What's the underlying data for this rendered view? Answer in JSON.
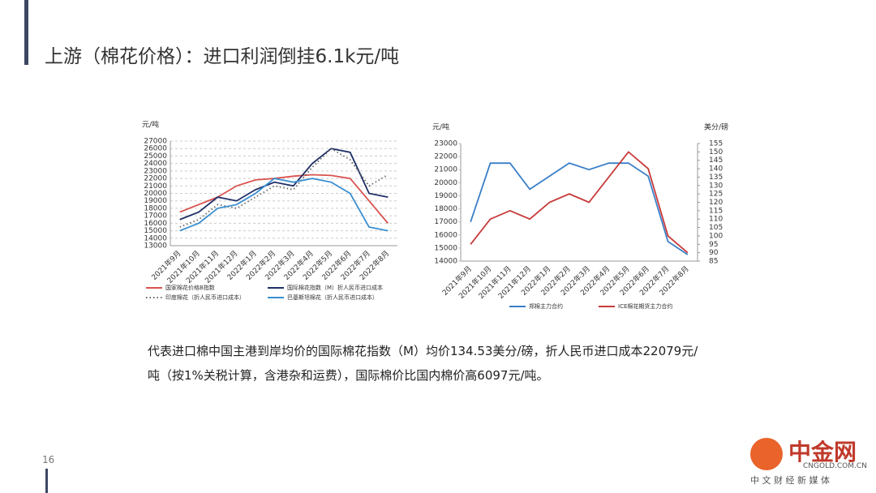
{
  "header": {
    "title": "上游（棉花价格）：进口利润倒挂6.1k元/吨"
  },
  "chart_data": [
    {
      "type": "line",
      "y_label": "元/吨",
      "categories": [
        "2021年9月",
        "2021年10月",
        "2021年11月",
        "2021年12月",
        "2022年1月",
        "2022年2月",
        "2022年3月",
        "2022年4月",
        "2022年5月",
        "2022年6月",
        "2022年7月",
        "2022年8月"
      ],
      "ylim": [
        13000,
        27000
      ],
      "yticks": [
        13000,
        14000,
        15000,
        16000,
        17000,
        18000,
        19000,
        20000,
        21000,
        22000,
        23000,
        24000,
        25000,
        26000,
        27000
      ],
      "grid": true,
      "series": [
        {
          "name": "国家棉花价格B指数",
          "color": "#d9534f",
          "linestyle": "solid",
          "values": [
            17500,
            18500,
            19500,
            21000,
            21800,
            22000,
            22300,
            22500,
            22400,
            22000,
            19000,
            16000
          ]
        },
        {
          "name": "国际棉花指数（M）折人民币进口成本",
          "color": "#1f2f66",
          "linestyle": "solid",
          "values": [
            16500,
            17500,
            19500,
            19000,
            20500,
            21500,
            21000,
            24000,
            26000,
            25500,
            20000,
            19500
          ]
        },
        {
          "name": "印度棉花（折人民币进口成本）",
          "color": "#666666",
          "linestyle": "dotted",
          "values": [
            15500,
            16500,
            18500,
            18000,
            19500,
            21000,
            20500,
            23500,
            26000,
            24500,
            21000,
            22500
          ]
        },
        {
          "name": "巴基斯坦棉花（折人民币进口成本）",
          "color": "#3a8fd0",
          "linestyle": "solid",
          "values": [
            15000,
            16000,
            18000,
            18500,
            20000,
            22000,
            21500,
            22000,
            21500,
            20000,
            15500,
            15000
          ]
        }
      ]
    },
    {
      "type": "line",
      "y_label": "元/吨",
      "y2_label": "美分/磅",
      "categories": [
        "2021年9月",
        "2021年10月",
        "2021年11月",
        "2021年12月",
        "2022年1月",
        "2022年2月",
        "2022年3月",
        "2022年4月",
        "2022年5月",
        "2022年6月",
        "2022年7月",
        "2022年8月"
      ],
      "ylim": [
        14000,
        23000
      ],
      "yticks": [
        14000,
        15000,
        16000,
        17000,
        18000,
        19000,
        20000,
        21000,
        22000,
        23000
      ],
      "y2lim": [
        85,
        155
      ],
      "y2ticks": [
        85,
        90,
        95,
        100,
        105,
        110,
        115,
        120,
        125,
        130,
        135,
        140,
        145,
        150,
        155
      ],
      "grid": false,
      "series": [
        {
          "name": "郑棉主力合约",
          "color": "#3a7fc8",
          "linestyle": "solid",
          "values": [
            17000,
            21500,
            21500,
            19500,
            20500,
            21500,
            21000,
            21500,
            21500,
            20500,
            15500,
            14500
          ]
        },
        {
          "name": "ICE棉花期货主力合约",
          "color": "#c83a3a",
          "linestyle": "solid",
          "axis": "y2",
          "values": [
            95,
            110,
            115,
            110,
            120,
            125,
            120,
            135,
            150,
            140,
            100,
            90
          ]
        }
      ]
    }
  ],
  "body": {
    "lines": [
      "代表进口棉中国主港到岸均价的国际棉花指数（M）均价134.53美分/磅，折人民币进口成本22079元/",
      "吨（按1%关税计算，含港杂和运费），国际棉价比国内棉价高6097元/吨。"
    ]
  },
  "footer": {
    "page": "16",
    "logo": "中金网",
    "logo_url": "CNGOLD.COM.CN",
    "logo_tagline": "中 文 财 经 新 媒 体"
  }
}
